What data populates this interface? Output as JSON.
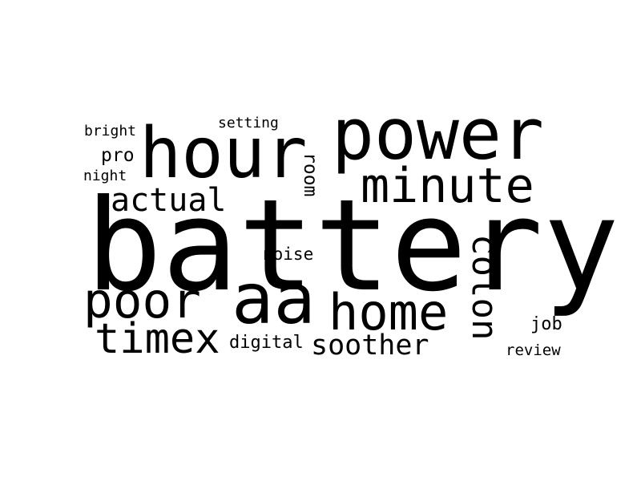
{
  "colors": {
    "background": "#ffffff",
    "text": "#000000"
  },
  "words": {
    "battery": "battery",
    "power": "power",
    "hour": "hour",
    "minute": "minute",
    "aa": "aa",
    "home": "home",
    "poor": "poor",
    "timex": "timex",
    "colon": "colon",
    "actual": "actual",
    "soother": "soother",
    "room": "room",
    "noise": "noise",
    "digital": "digital",
    "setting": "setting",
    "bright": "bright",
    "pro": "pro",
    "night": "night",
    "job": "job",
    "review": "review"
  }
}
